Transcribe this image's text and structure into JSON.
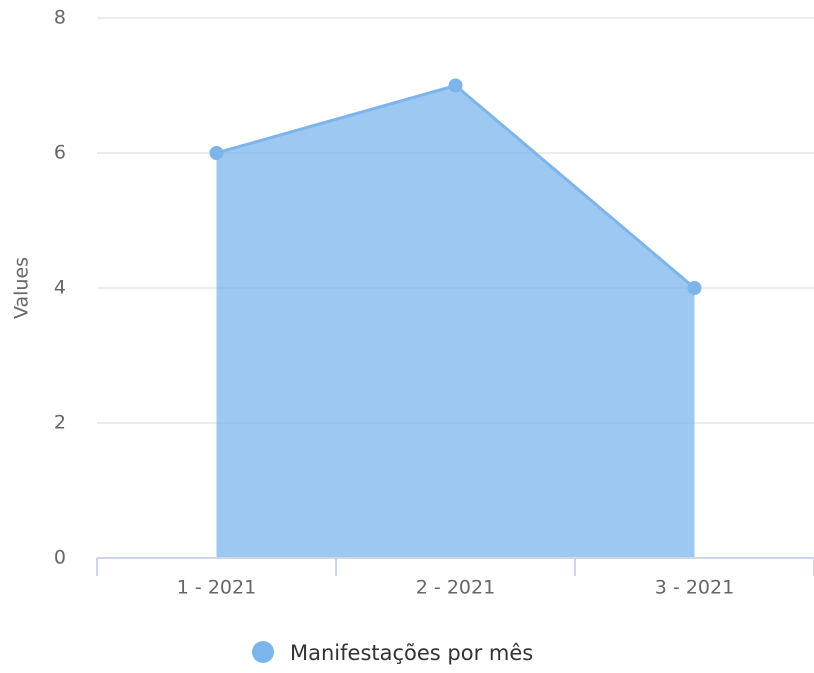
{
  "chart_data": {
    "type": "area",
    "y_axis_label": "Values",
    "categories": [
      "1 - 2021",
      "2 - 2021",
      "3 - 2021"
    ],
    "series": [
      {
        "name": "Manifestações por mês",
        "color": "#7cb5ec",
        "values": [
          6,
          7,
          4
        ]
      }
    ],
    "ylim": [
      0,
      8
    ],
    "yticks": [
      0,
      2,
      4,
      6,
      8
    ],
    "grid": true,
    "legend": "bottom"
  }
}
